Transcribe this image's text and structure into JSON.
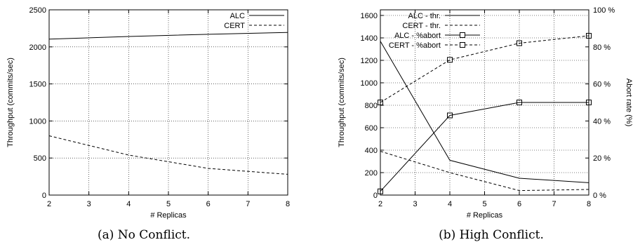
{
  "chart_data": [
    {
      "type": "line",
      "caption": "(a) No Conflict.",
      "xlabel": "# Replicas",
      "ylabel": "Throughput (commits/sec)",
      "xlim": [
        2,
        8
      ],
      "ylim": [
        0,
        2500
      ],
      "xticks": [
        2,
        3,
        4,
        5,
        6,
        7,
        8
      ],
      "yticks": [
        0,
        500,
        1000,
        1500,
        2000,
        2500
      ],
      "grid": true,
      "legend_position": "top-right",
      "series": [
        {
          "name": "ALC",
          "axis": "left",
          "style": "solid",
          "x": [
            2,
            4,
            6,
            8
          ],
          "values": [
            2105,
            2140,
            2170,
            2195
          ]
        },
        {
          "name": "CERT",
          "axis": "left",
          "style": "dashed",
          "x": [
            2,
            4,
            6,
            8
          ],
          "values": [
            800,
            540,
            360,
            280
          ]
        }
      ]
    },
    {
      "type": "line",
      "caption": "(b) High Conflict.",
      "xlabel": "# Replicas",
      "ylabel": "Throughput (commits/sec)",
      "y2label": "Abort rate (%)",
      "xlim": [
        2,
        8
      ],
      "ylim": [
        0,
        1650
      ],
      "y2lim": [
        0,
        100
      ],
      "xticks": [
        2,
        3,
        4,
        5,
        6,
        7,
        8
      ],
      "yticks": [
        0,
        200,
        400,
        600,
        800,
        1000,
        1200,
        1400,
        1600
      ],
      "y2ticks": [
        0,
        20,
        40,
        60,
        80,
        100
      ],
      "y2tick_labels": [
        "0 %",
        "20 %",
        "40 %",
        "60 %",
        "80 %",
        "100 %"
      ],
      "grid": true,
      "legend_position": "top-left",
      "series": [
        {
          "name": "ALC - thr.",
          "axis": "left",
          "style": "solid",
          "x": [
            2,
            4,
            6,
            8
          ],
          "values": [
            1370,
            310,
            150,
            110
          ]
        },
        {
          "name": "CERT - thr.",
          "axis": "left",
          "style": "dashed",
          "x": [
            2,
            4,
            6,
            8
          ],
          "values": [
            390,
            200,
            40,
            50
          ]
        },
        {
          "name": "ALC - %abort",
          "axis": "right",
          "style": "solid",
          "marker": "square",
          "x": [
            2,
            4,
            6,
            8
          ],
          "values": [
            2,
            43,
            50,
            50
          ]
        },
        {
          "name": "CERT - %abort",
          "axis": "right",
          "style": "dashed",
          "marker": "square",
          "x": [
            2,
            4,
            6,
            8
          ],
          "values": [
            50,
            73,
            82,
            86
          ]
        }
      ]
    }
  ]
}
